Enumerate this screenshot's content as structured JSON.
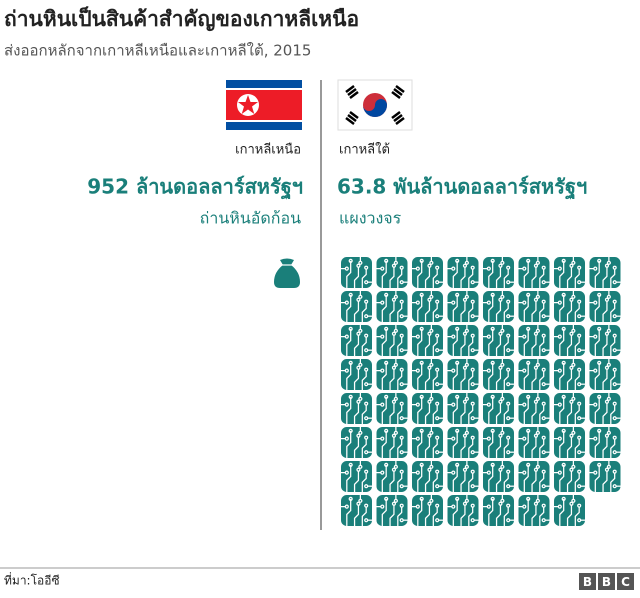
{
  "title": "ถ่านหินเป็นสินค้าสำคัญของเกาหลีเหนือ",
  "subtitle": "ส่งออกหลักจากเกาหลีเหนือและเกาหลีใต้, 2015",
  "left": {
    "country": "เกาหลีเหนือ",
    "value": "952 ล้านดอลลาร์สหรัฐฯ",
    "product": "ถ่านหินอัดก้อน"
  },
  "right": {
    "country": "เกาหลีใต้",
    "value": "63.8 พันล้านดอลลาร์สหรัฐฯ",
    "product": "แผงวงจร"
  },
  "source": "ที่มา:โออีซี",
  "logo": [
    "B",
    "B",
    "C"
  ]
}
